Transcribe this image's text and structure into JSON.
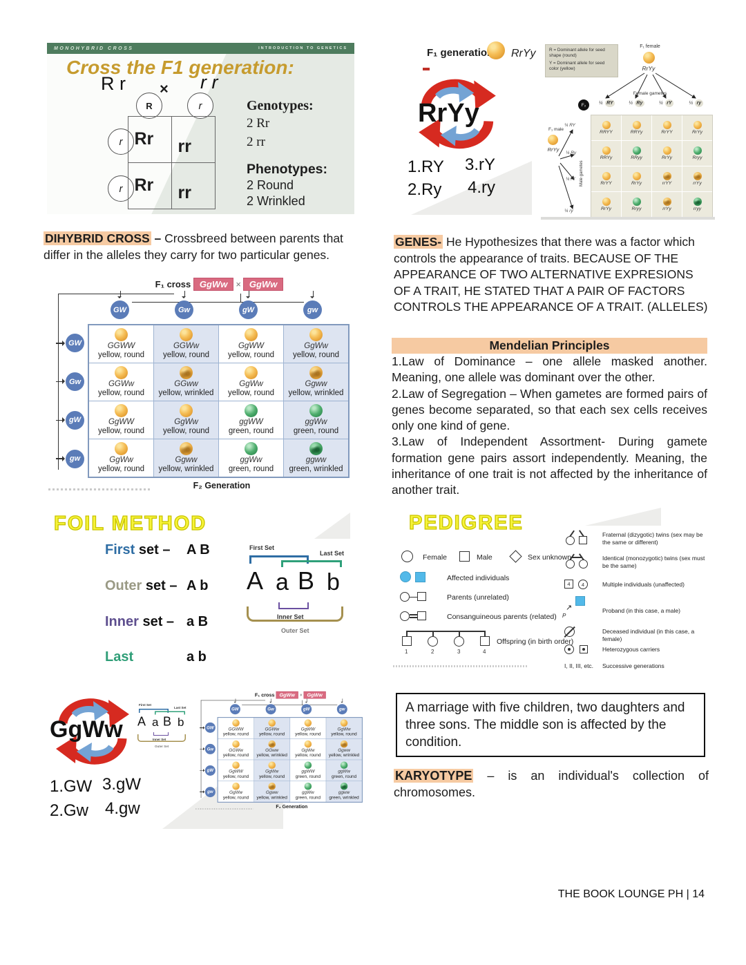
{
  "page": {
    "footer": "THE BOOK LOUNGE PH | 14"
  },
  "colors": {
    "highlight": "#f6caa2",
    "slide_bar_green": "#4e7c5e",
    "title_gold": "#c69b2e",
    "badge_pink": "#d96a80",
    "gamete_blue": "#5b7cb8",
    "affected_blue": "#52b9e9",
    "cycle_red": "#d62a20",
    "cycle_blue": "#74a3d4",
    "yellow_heading": "#f7f43a"
  },
  "icons": [
    "recycle-arrows-icon",
    "pea-yellow-round-icon",
    "pea-yellow-wrinkled-icon",
    "pea-green-round-icon",
    "pea-green-wrinkled-icon",
    "pedigree-circle-icon",
    "pedigree-square-icon",
    "pedigree-diamond-icon"
  ],
  "monohybrid": {
    "header_left": "MONOHYBRID CROSS",
    "header_right": "INTRODUCTION TO GENETICS",
    "title": "Cross the F1 generation:",
    "parent_left": "R r",
    "cross": "×",
    "parent_right": "r r",
    "col_gametes": [
      "R",
      "r"
    ],
    "row_gametes": [
      "r",
      "r"
    ],
    "cells": [
      "Rr",
      "rr",
      "Rr",
      "rr"
    ],
    "genotypes_label": "Genotypes:",
    "genotypes": [
      "2  Rr",
      "2  rr"
    ],
    "phenotypes_label": "Phenotypes:",
    "phenotypes": [
      "2 Round",
      "2 Wrinkled"
    ]
  },
  "dihybrid_def": {
    "term": "DIHYBRID CROSS",
    "dash": " – ",
    "text": "Crossbreed between parents that differ in the alleles they carry for two particular genes."
  },
  "punnett": {
    "header_prefix": "F₁ cross",
    "parent1": "GgWw",
    "cross": "×",
    "parent2": "GgWw",
    "col_gametes": [
      "GW",
      "Gw",
      "gW",
      "gw"
    ],
    "row_gametes": [
      "GW",
      "Gw",
      "gW",
      "gw"
    ],
    "cells": [
      {
        "g": "GGWW",
        "p": "yellow, round",
        "pea": "yr"
      },
      {
        "g": "GGWw",
        "p": "yellow, round",
        "pea": "yr"
      },
      {
        "g": "GgWW",
        "p": "yellow, round",
        "pea": "yr"
      },
      {
        "g": "GgWw",
        "p": "yellow, round",
        "pea": "yr"
      },
      {
        "g": "GGWw",
        "p": "yellow, round",
        "pea": "yr"
      },
      {
        "g": "GGww",
        "p": "yellow, wrinkled",
        "pea": "yw"
      },
      {
        "g": "GgWw",
        "p": "yellow, round",
        "pea": "yr"
      },
      {
        "g": "Ggww",
        "p": "yellow, wrinkled",
        "pea": "yw"
      },
      {
        "g": "GgWW",
        "p": "yellow, round",
        "pea": "yr"
      },
      {
        "g": "GgWw",
        "p": "yellow, round",
        "pea": "yr"
      },
      {
        "g": "ggWW",
        "p": "green, round",
        "pea": "gr"
      },
      {
        "g": "ggWw",
        "p": "green, round",
        "pea": "gr"
      },
      {
        "g": "GgWw",
        "p": "yellow, round",
        "pea": "yr"
      },
      {
        "g": "Ggww",
        "p": "yellow, wrinkled",
        "pea": "yw"
      },
      {
        "g": "ggWw",
        "p": "green, round",
        "pea": "gr"
      },
      {
        "g": "ggww",
        "p": "green, wrinkled",
        "pea": "gw"
      }
    ],
    "caption": "F₂ Generation"
  },
  "foil": {
    "title": "FOIL METHOD",
    "rows": [
      {
        "word": "First",
        "suffix": " set –",
        "value": "A B"
      },
      {
        "word": "Outer",
        "suffix": " set –",
        "value": "A b"
      },
      {
        "word": "Inner",
        "suffix": " set –",
        "value": "a B"
      },
      {
        "word": "Last",
        "suffix": " set –",
        "value": "a b"
      }
    ],
    "diagram": {
      "letters": [
        "A",
        "a",
        "B",
        "b"
      ],
      "first_label": "First Set",
      "last_label": "Last Set",
      "inner_label": "Inner Set",
      "outer_label": "Outer Set"
    }
  },
  "ggww_panel": {
    "center": "GgWw",
    "items": [
      "1.GW",
      "2.Gw",
      "3.gW",
      "4.gw"
    ]
  },
  "rryy_panel": {
    "f1_label": "F₁ generation",
    "f1_genotype": "RrYy",
    "center": "RrYy",
    "items": [
      "1.RY",
      "2.Ry",
      "3.rY",
      "4.ry"
    ]
  },
  "f2_square": {
    "legend": [
      "R = Dominant allele for seed shape (round)",
      "Y = Dominant allele for seed color (yellow)"
    ],
    "female_label": "F₁ female",
    "female_genotype": "RrYy",
    "female_gametes": "Female gametes",
    "male_label": "F₁ male",
    "male_genotype": "RrYy",
    "male_gametes": "Male gametes",
    "f2": "F₂",
    "fractions": [
      "¼ RY",
      "¼ Ry",
      "¼ rY",
      "¼ ry"
    ],
    "cells": [
      {
        "g": "RRYY",
        "pea": "yr"
      },
      {
        "g": "RRYy",
        "pea": "yr"
      },
      {
        "g": "RrYY",
        "pea": "yr"
      },
      {
        "g": "RrYy",
        "pea": "yr"
      },
      {
        "g": "RRYy",
        "pea": "yr"
      },
      {
        "g": "RRyy",
        "pea": "gr"
      },
      {
        "g": "RrYy",
        "pea": "yr"
      },
      {
        "g": "Rryy",
        "pea": "gr"
      },
      {
        "g": "RrYY",
        "pea": "yr"
      },
      {
        "g": "RrYy",
        "pea": "yr"
      },
      {
        "g": "rrYY",
        "pea": "yw"
      },
      {
        "g": "rrYy",
        "pea": "yw"
      },
      {
        "g": "RrYy",
        "pea": "yr"
      },
      {
        "g": "Rryy",
        "pea": "gr"
      },
      {
        "g": "rrYy",
        "pea": "yw"
      },
      {
        "g": "rryy",
        "pea": "gw"
      }
    ]
  },
  "genes_def": {
    "term": "GENES-",
    "text": " He Hypothesizes that there was a factor which controls the appearance of traits. BECAUSE OF THE APPEARANCE OF TWO ALTERNATIVE EXPRESIONS OF A TRAIT, HE STATED THAT A PAIR OF FACTORS CONTROLS THE APPEARANCE OF A TRAIT. (ALLELES)"
  },
  "mendelian": {
    "title": "Mendelian Principles",
    "items": [
      "1.Law of Dominance – one allele masked another. Meaning, one allele was dominant over the other.",
      "2.Law of Segregation – When gametes are formed pairs of genes become separated, so that each sex cells receives only one kind of gene.",
      "3.Law of Independent Assortment- During gamete formation gene pairs assort independently. Meaning, the inheritance of one trait is not affected by the inheritance of another trait."
    ]
  },
  "pedigree": {
    "title": "PEDIGREE",
    "female": "Female",
    "male": "Male",
    "sex_unknown": "Sex unknown",
    "affected": "Affected individuals",
    "parents": "Parents (unrelated)",
    "consanguineous": "Consanguineous parents (related)",
    "offspring": "Offspring (in birth order)",
    "offspring_numbers": [
      "1",
      "2",
      "3",
      "4"
    ],
    "fraternal": "Fraternal (dizygotic) twins (sex may be the same or different)",
    "identical": "Identical (monozygotic) twins (sex must be the same)",
    "multiple": "Multiple individuals (unaffected)",
    "multiple_count": "4",
    "proband": "Proband (in this case, a male)",
    "proband_letter": "P",
    "deceased": "Deceased individual (in this case, a female)",
    "carriers": "Heterozygous carriers",
    "generations_key": "I, II, III, etc.",
    "generations": "Successive generations"
  },
  "marriage_note": "A marriage with five children, two daughters and three sons. The middle son is affected by the condition.",
  "karyotype_def": {
    "term": "KARYOTYPE",
    "text": " – is an individual's collection of chromosomes."
  }
}
